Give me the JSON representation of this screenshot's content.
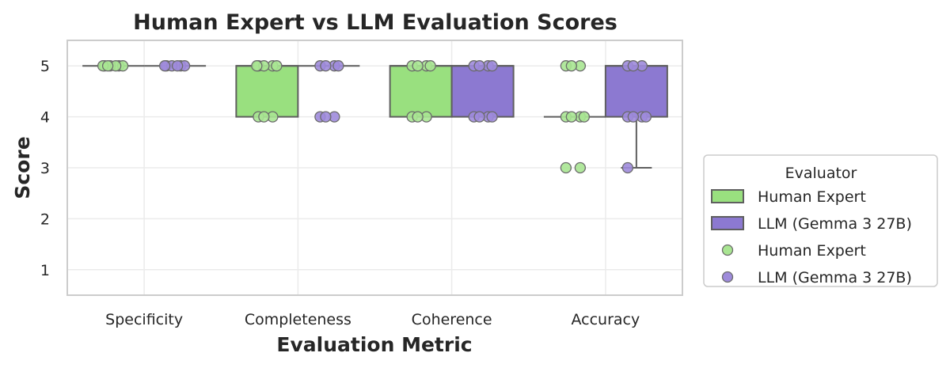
{
  "chart_data": {
    "type": "box",
    "title": "Human Expert vs LLM Evaluation Scores",
    "xlabel": "Evaluation Metric",
    "ylabel": "Score",
    "ylim": [
      0.5,
      5.5
    ],
    "yticks": [
      "1",
      "2",
      "3",
      "4",
      "5"
    ],
    "grid": true,
    "categories": [
      "Specificity",
      "Completeness",
      "Coherence",
      "Accuracy"
    ],
    "series": [
      {
        "name": "Human Expert",
        "color": "#99e07f",
        "point_color": "#a9e592",
        "boxes": [
          {
            "q1": 5,
            "median": 5,
            "q3": 5,
            "whisker_low": 5,
            "whisker_high": 5
          },
          {
            "q1": 4,
            "median": 5,
            "q3": 5,
            "whisker_low": 4,
            "whisker_high": 5
          },
          {
            "q1": 4,
            "median": 5,
            "q3": 5,
            "whisker_low": 4,
            "whisker_high": 5
          },
          {
            "q1": 4,
            "median": 4,
            "q3": 4,
            "whisker_low": 4,
            "whisker_high": 4
          }
        ],
        "points": [
          [
            5,
            5,
            5,
            5,
            5,
            5,
            5
          ],
          [
            5,
            5,
            5,
            5,
            5,
            4,
            4,
            4
          ],
          [
            5,
            5,
            5,
            5,
            4,
            4,
            4
          ],
          [
            5,
            5,
            5,
            4,
            4,
            4,
            4,
            3,
            3
          ]
        ]
      },
      {
        "name": "LLM (Gemma 3 27B)",
        "color": "#8c79d1",
        "point_color": "#9e8bdb",
        "boxes": [
          {
            "q1": 5,
            "median": 5,
            "q3": 5,
            "whisker_low": 5,
            "whisker_high": 5
          },
          {
            "q1": 5,
            "median": 5,
            "q3": 5,
            "whisker_low": 5,
            "whisker_high": 5
          },
          {
            "q1": 4,
            "median": 5,
            "q3": 5,
            "whisker_low": 4,
            "whisker_high": 5
          },
          {
            "q1": 4,
            "median": 5,
            "q3": 5,
            "whisker_low": 3,
            "whisker_high": 5
          }
        ],
        "points": [
          [
            5,
            5,
            5,
            5,
            5,
            5
          ],
          [
            5,
            5,
            5,
            5,
            4,
            4,
            4
          ],
          [
            5,
            5,
            5,
            5,
            4,
            4,
            4,
            4
          ],
          [
            5,
            5,
            5,
            4,
            4,
            4,
            4,
            3
          ]
        ]
      }
    ],
    "legend": {
      "title": "Evaluator",
      "placement": "right",
      "entries": [
        {
          "label": "Human Expert",
          "kind": "box",
          "series": 0
        },
        {
          "label": "LLM (Gemma 3 27B)",
          "kind": "box",
          "series": 1
        },
        {
          "label": "Human Expert",
          "kind": "point",
          "series": 0
        },
        {
          "label": "LLM (Gemma 3 27B)",
          "kind": "point",
          "series": 1
        }
      ]
    }
  }
}
